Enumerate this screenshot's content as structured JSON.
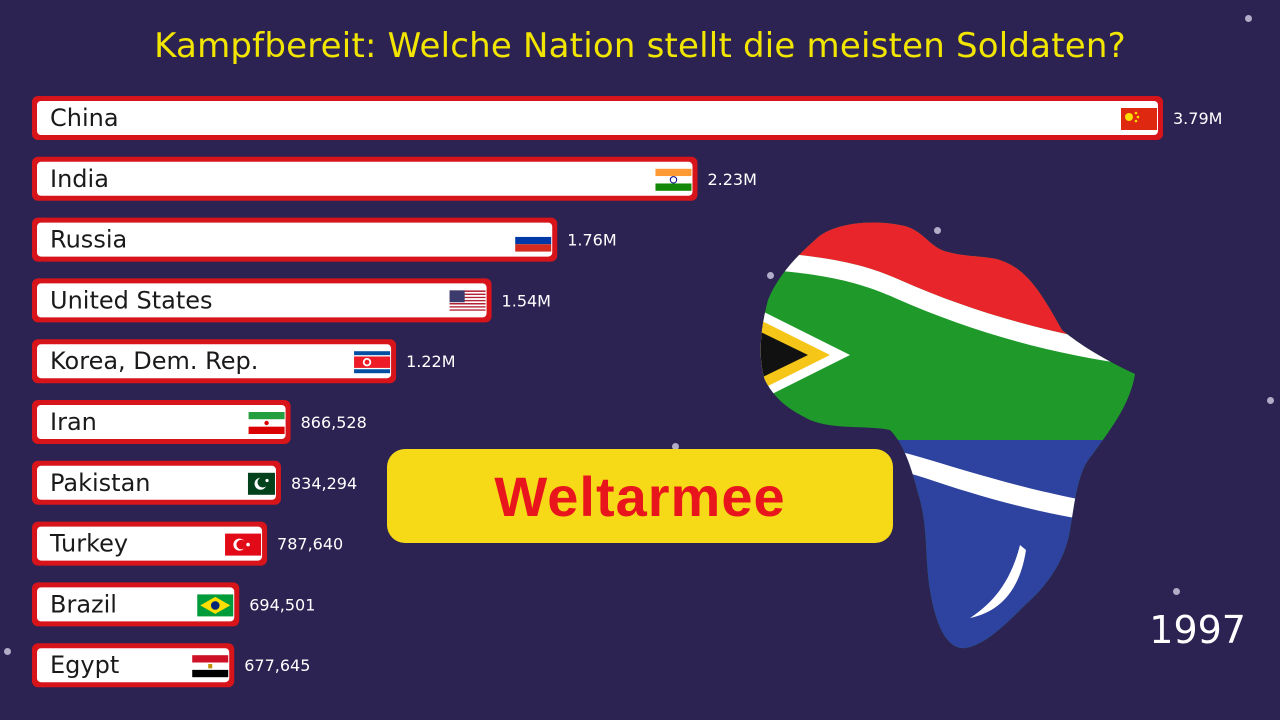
{
  "header": {
    "title": "Kampfbereit: Welche Nation stellt die meisten Soldaten?"
  },
  "year": "1997",
  "badge": {
    "text": "Weltarmee"
  },
  "graphic": {
    "icon": "africa-south-africa-flag-map"
  },
  "colors": {
    "background": "#2c2352",
    "title": "#f2e600",
    "bar_fill": "#ffffff",
    "bar_border": "#d8141b",
    "badge_bg": "#f7da17",
    "badge_text": "#e8161c"
  },
  "chart_data": {
    "type": "bar",
    "orientation": "horizontal",
    "title": "Kampfbereit: Welche Nation stellt die meisten Soldaten?",
    "categories": [
      "China",
      "India",
      "Russia",
      "United States",
      "Korea, Dem. Rep.",
      "Iran",
      "Pakistan",
      "Turkey",
      "Brazil",
      "Egypt"
    ],
    "values": [
      3790000,
      2230000,
      1760000,
      1540000,
      1220000,
      866528,
      834294,
      787640,
      694501,
      677645
    ],
    "value_labels": [
      "3.79M",
      "2.23M",
      "1.76M",
      "1.54M",
      "1.22M",
      "866,528",
      "834,294",
      "787,640",
      "694,501",
      "677,645"
    ],
    "flags": [
      "china-flag-icon",
      "india-flag-icon",
      "russia-flag-icon",
      "usa-flag-icon",
      "north-korea-flag-icon",
      "iran-flag-icon",
      "pakistan-flag-icon",
      "turkey-flag-icon",
      "brazil-flag-icon",
      "egypt-flag-icon"
    ],
    "xlim": [
      0,
      3790000
    ],
    "grid": false,
    "legend": "none"
  }
}
